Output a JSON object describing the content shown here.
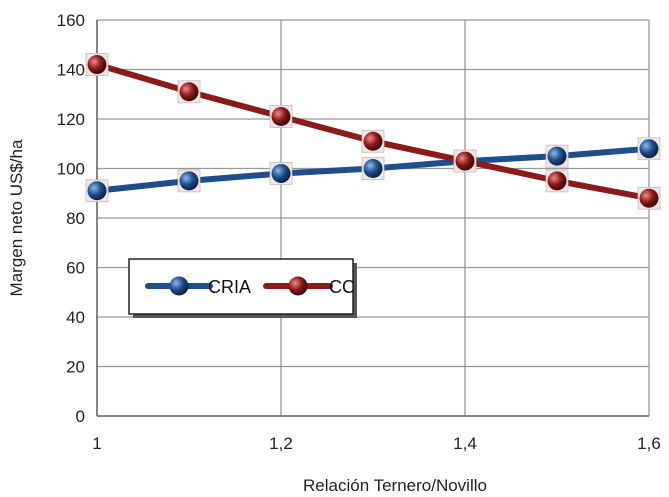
{
  "chart_data": {
    "type": "line",
    "xlabel": "Relación Ternero/Novillo",
    "ylabel": "Margen neto US$/ha",
    "x": [
      1,
      1.1,
      1.2,
      1.3,
      1.4,
      1.5,
      1.6
    ],
    "x_ticks": [
      "1",
      "1,2",
      "1,4",
      "1,6"
    ],
    "x_tick_values": [
      1,
      1.2,
      1.4,
      1.6
    ],
    "xlim": [
      1,
      1.6
    ],
    "y_ticks": [
      "0",
      "20",
      "40",
      "60",
      "80",
      "100",
      "120",
      "140",
      "160"
    ],
    "y_tick_values": [
      0,
      20,
      40,
      60,
      80,
      100,
      120,
      140,
      160
    ],
    "ylim": [
      0,
      160
    ],
    "grid": true,
    "legend_position": "center-left",
    "series": [
      {
        "name": "CRIA",
        "color": "#1f4e8c",
        "values": [
          91,
          95,
          98,
          100,
          103,
          105,
          108
        ]
      },
      {
        "name": "CC",
        "color": "#8b1a1a",
        "values": [
          142,
          131,
          121,
          111,
          103,
          95,
          88
        ]
      }
    ]
  }
}
